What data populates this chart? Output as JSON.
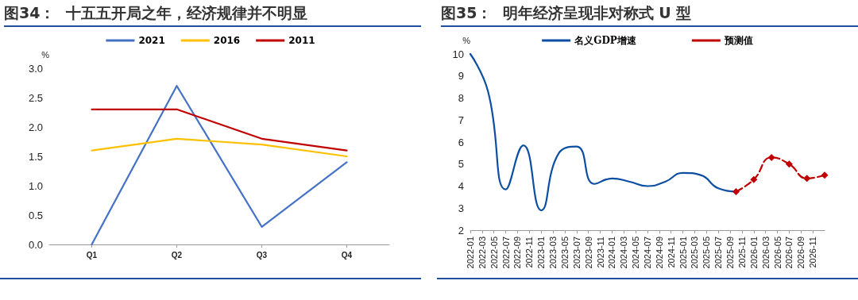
{
  "chart_data": [
    {
      "type": "line",
      "title": "图34：  十五五开局之年，经济规律并不明显",
      "ylabel": "%",
      "categories": [
        "Q1",
        "Q2",
        "Q3",
        "Q4"
      ],
      "series": [
        {
          "name": "2021",
          "color": "#4472c4",
          "values": [
            0,
            2.7,
            0.3,
            1.4
          ]
        },
        {
          "name": "2016",
          "color": "#ffc000",
          "values": [
            1.6,
            1.8,
            1.7,
            1.5
          ]
        },
        {
          "name": "2011",
          "color": "#c00000",
          "values": [
            2.3,
            2.3,
            1.8,
            1.6
          ]
        }
      ],
      "ylim": [
        0,
        3
      ],
      "yticks": [
        {
          "value": 0,
          "label": "0.0"
        },
        {
          "value": 0.5,
          "label": "0.5"
        },
        {
          "value": 1,
          "label": "1.0"
        },
        {
          "value": 1.5,
          "label": "1.5"
        },
        {
          "value": 2,
          "label": "2.0"
        },
        {
          "value": 2.5,
          "label": "2.5"
        },
        {
          "value": 3,
          "label": "3.0"
        }
      ],
      "grid": false,
      "legend": "top",
      "marker": "none",
      "line_style": "solid"
    },
    {
      "type": "line",
      "title": "图35：  明年经济呈现非对称式 U 型",
      "ylabel": "%",
      "categories": [
        "2022-01",
        null,
        "2022-03",
        null,
        "2022-05",
        null,
        "2022-07",
        null,
        "2022-09",
        null,
        "2022-11",
        null,
        "2023-01",
        null,
        "2023-03",
        null,
        "2023-05",
        null,
        "2023-07",
        null,
        "2023-09",
        null,
        "2023-11",
        null,
        "2024-01",
        null,
        "2024-03",
        null,
        "2024-05",
        null,
        "2024-07",
        null,
        "2024-09",
        null,
        "2024-11",
        null,
        "2025-01",
        null,
        "2025-03",
        null,
        "2025-05",
        null,
        "2025-07",
        null,
        "2025-09",
        null,
        "2025-11",
        null,
        "2026-01",
        null,
        "2026-03",
        null,
        "2026-05",
        null,
        "2026-07",
        null,
        "2026-09",
        null,
        "2026-11",
        null,
        null
      ],
      "series": [
        {
          "name": "名义GDP增速",
          "color": "#0b4ea2",
          "marker": "none",
          "line_style": "solid",
          "values": [
            10,
            null,
            null,
            8.3,
            null,
            null,
            3.85,
            null,
            null,
            5.85,
            null,
            null,
            2.9,
            null,
            null,
            5.5,
            null,
            null,
            5.8,
            null,
            null,
            4.1,
            null,
            null,
            4.35,
            null,
            null,
            4.2,
            null,
            null,
            4.0,
            null,
            null,
            4.2,
            null,
            null,
            4.6,
            null,
            null,
            4.5,
            null,
            null,
            3.9,
            null,
            null,
            3.75,
            null,
            null,
            null,
            null,
            null,
            null,
            null,
            null,
            null,
            null,
            null,
            null,
            null,
            null,
            null
          ]
        },
        {
          "name": "预测值",
          "color": "#c00000",
          "marker": "diamond",
          "line_style": "dashed",
          "values": [
            null,
            null,
            null,
            null,
            null,
            null,
            null,
            null,
            null,
            null,
            null,
            null,
            null,
            null,
            null,
            null,
            null,
            null,
            null,
            null,
            null,
            null,
            null,
            null,
            null,
            null,
            null,
            null,
            null,
            null,
            null,
            null,
            null,
            null,
            null,
            null,
            null,
            null,
            null,
            null,
            null,
            null,
            null,
            null,
            null,
            3.75,
            null,
            null,
            4.3,
            null,
            null,
            5.3,
            null,
            null,
            5.0,
            null,
            null,
            4.35,
            null,
            null,
            4.5
          ]
        }
      ],
      "ylim": [
        2,
        10
      ],
      "yticks": [
        2,
        3,
        4,
        5,
        6,
        7,
        8,
        9,
        10
      ],
      "grid": false,
      "legend": "top"
    }
  ]
}
